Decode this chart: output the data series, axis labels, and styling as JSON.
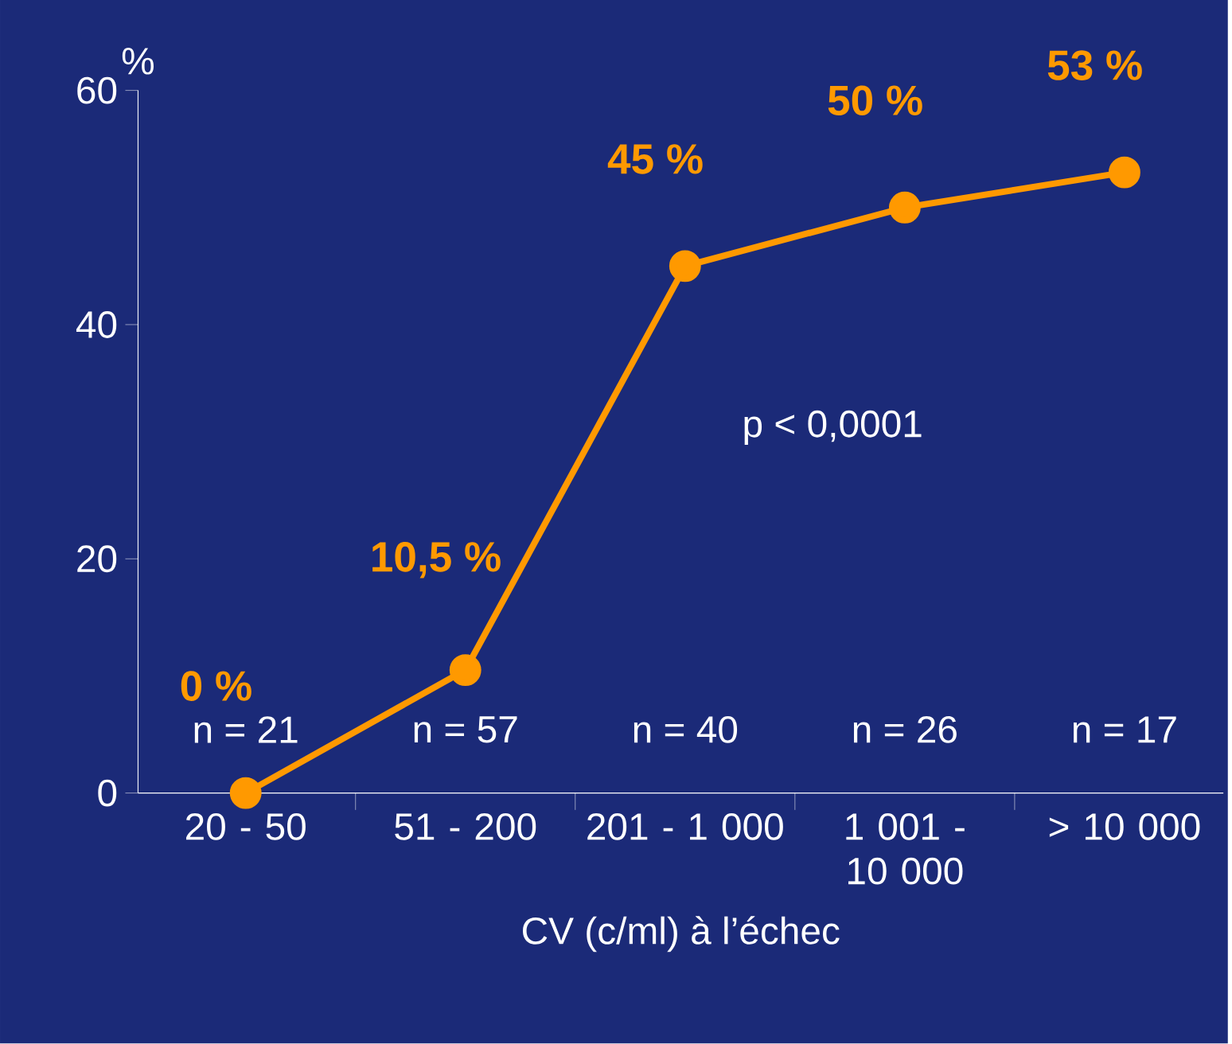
{
  "chart_data": {
    "type": "line",
    "categories": [
      "20 - 50",
      "51 - 200",
      "201 - 1 000",
      "1 001 - 10 000",
      "> 10 000"
    ],
    "series": [
      {
        "color": "#ff9900",
        "values": [
          0,
          10.5,
          45,
          50,
          53
        ],
        "value_labels": [
          "0 %",
          "10,5 %",
          "45 %",
          "50 %",
          "53 %"
        ]
      }
    ],
    "ylim": [
      0,
      60
    ],
    "yticks": [
      0,
      20,
      40,
      60
    ],
    "ylabel": "%",
    "xlabel": "CV (c/ml)  à l’échec",
    "marker": "circle",
    "line_style": "solid",
    "grid": false,
    "annotations": [
      "p < 0,0001",
      "n = 21",
      "n = 57",
      "n = 40",
      "n = 26",
      "n = 17"
    ]
  }
}
